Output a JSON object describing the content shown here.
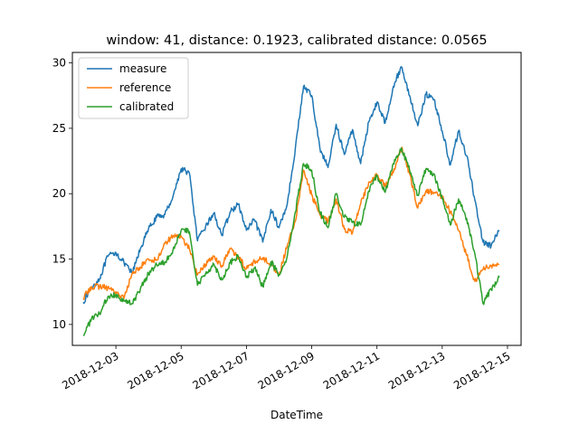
{
  "chart_data": {
    "type": "line",
    "title": "window: 41, distance: 0.1923, calibrated distance: 0.0565",
    "xlabel": "DateTime",
    "ylabel": "",
    "grid": false,
    "legend_position": "upper-left",
    "xlim": [
      "2018-12-01T16:00",
      "2018-12-15T10:00"
    ],
    "ylim": [
      8.4,
      30.8
    ],
    "x_ticks": [
      "2018-12-03",
      "2018-12-05",
      "2018-12-07",
      "2018-12-09",
      "2018-12-11",
      "2018-12-13",
      "2018-12-15"
    ],
    "y_ticks": [
      10,
      15,
      20,
      25,
      30
    ],
    "series": [
      {
        "name": "measure",
        "color": "#1f77b4",
        "points": [
          [
            "2018-12-02T00:00",
            11.7
          ],
          [
            "2018-12-02T06:00",
            12.8
          ],
          [
            "2018-12-02T12:00",
            13.5
          ],
          [
            "2018-12-02T18:00",
            15.2
          ],
          [
            "2018-12-03T00:00",
            15.5
          ],
          [
            "2018-12-03T06:00",
            14.7
          ],
          [
            "2018-12-03T12:00",
            13.9
          ],
          [
            "2018-12-03T18:00",
            15.8
          ],
          [
            "2018-12-04T00:00",
            17.3
          ],
          [
            "2018-12-04T06:00",
            18.2
          ],
          [
            "2018-12-04T12:00",
            18.4
          ],
          [
            "2018-12-04T18:00",
            19.8
          ],
          [
            "2018-12-05T00:00",
            21.9
          ],
          [
            "2018-12-05T06:00",
            21.6
          ],
          [
            "2018-12-05T12:00",
            16.4
          ],
          [
            "2018-12-05T18:00",
            17.5
          ],
          [
            "2018-12-06T00:00",
            18.5
          ],
          [
            "2018-12-06T06:00",
            16.8
          ],
          [
            "2018-12-06T12:00",
            18.6
          ],
          [
            "2018-12-06T18:00",
            19.2
          ],
          [
            "2018-12-07T00:00",
            17.2
          ],
          [
            "2018-12-07T06:00",
            18.0
          ],
          [
            "2018-12-07T12:00",
            16.3
          ],
          [
            "2018-12-07T18:00",
            18.8
          ],
          [
            "2018-12-08T00:00",
            17.4
          ],
          [
            "2018-12-08T06:00",
            19.2
          ],
          [
            "2018-12-08T12:00",
            23.5
          ],
          [
            "2018-12-08T18:00",
            28.2
          ],
          [
            "2018-12-09T00:00",
            27.5
          ],
          [
            "2018-12-09T06:00",
            23.5
          ],
          [
            "2018-12-09T12:00",
            22.0
          ],
          [
            "2018-12-09T18:00",
            25.3
          ],
          [
            "2018-12-10T00:00",
            23.0
          ],
          [
            "2018-12-10T06:00",
            24.9
          ],
          [
            "2018-12-10T12:00",
            22.3
          ],
          [
            "2018-12-10T18:00",
            25.5
          ],
          [
            "2018-12-11T00:00",
            27.0
          ],
          [
            "2018-12-11T06:00",
            25.4
          ],
          [
            "2018-12-11T12:00",
            28.2
          ],
          [
            "2018-12-11T18:00",
            29.7
          ],
          [
            "2018-12-12T00:00",
            27.5
          ],
          [
            "2018-12-12T06:00",
            25.2
          ],
          [
            "2018-12-12T12:00",
            27.6
          ],
          [
            "2018-12-12T18:00",
            27.2
          ],
          [
            "2018-12-13T00:00",
            24.8
          ],
          [
            "2018-12-13T06:00",
            22.2
          ],
          [
            "2018-12-13T12:00",
            24.8
          ],
          [
            "2018-12-13T18:00",
            22.9
          ],
          [
            "2018-12-14T00:00",
            19.5
          ],
          [
            "2018-12-14T06:00",
            16.3
          ],
          [
            "2018-12-14T12:00",
            16.0
          ],
          [
            "2018-12-14T18:00",
            17.2
          ]
        ]
      },
      {
        "name": "reference",
        "color": "#ff7f0e",
        "points": [
          [
            "2018-12-02T00:00",
            12.0
          ],
          [
            "2018-12-02T06:00",
            12.9
          ],
          [
            "2018-12-02T12:00",
            12.9
          ],
          [
            "2018-12-02T18:00",
            12.8
          ],
          [
            "2018-12-03T00:00",
            12.5
          ],
          [
            "2018-12-03T06:00",
            12.0
          ],
          [
            "2018-12-03T12:00",
            13.9
          ],
          [
            "2018-12-03T18:00",
            14.4
          ],
          [
            "2018-12-04T00:00",
            15.0
          ],
          [
            "2018-12-04T06:00",
            14.9
          ],
          [
            "2018-12-04T12:00",
            16.2
          ],
          [
            "2018-12-04T18:00",
            16.8
          ],
          [
            "2018-12-05T00:00",
            16.7
          ],
          [
            "2018-12-05T06:00",
            15.8
          ],
          [
            "2018-12-05T12:00",
            13.8
          ],
          [
            "2018-12-05T18:00",
            14.6
          ],
          [
            "2018-12-06T00:00",
            15.2
          ],
          [
            "2018-12-06T06:00",
            14.5
          ],
          [
            "2018-12-06T12:00",
            15.8
          ],
          [
            "2018-12-06T18:00",
            15.1
          ],
          [
            "2018-12-07T00:00",
            14.3
          ],
          [
            "2018-12-07T06:00",
            14.8
          ],
          [
            "2018-12-07T12:00",
            15.1
          ],
          [
            "2018-12-07T18:00",
            14.6
          ],
          [
            "2018-12-08T00:00",
            13.8
          ],
          [
            "2018-12-08T06:00",
            16.0
          ],
          [
            "2018-12-08T12:00",
            17.9
          ],
          [
            "2018-12-08T18:00",
            21.8
          ],
          [
            "2018-12-09T00:00",
            19.9
          ],
          [
            "2018-12-09T06:00",
            18.4
          ],
          [
            "2018-12-09T12:00",
            17.9
          ],
          [
            "2018-12-09T18:00",
            19.6
          ],
          [
            "2018-12-10T00:00",
            17.3
          ],
          [
            "2018-12-10T06:00",
            17.0
          ],
          [
            "2018-12-10T12:00",
            19.2
          ],
          [
            "2018-12-10T18:00",
            20.9
          ],
          [
            "2018-12-11T00:00",
            21.4
          ],
          [
            "2018-12-11T06:00",
            20.6
          ],
          [
            "2018-12-11T12:00",
            21.6
          ],
          [
            "2018-12-11T18:00",
            23.5
          ],
          [
            "2018-12-12T00:00",
            21.5
          ],
          [
            "2018-12-12T06:00",
            18.9
          ],
          [
            "2018-12-12T12:00",
            20.2
          ],
          [
            "2018-12-12T18:00",
            20.1
          ],
          [
            "2018-12-13T00:00",
            19.7
          ],
          [
            "2018-12-13T06:00",
            18.6
          ],
          [
            "2018-12-13T12:00",
            17.2
          ],
          [
            "2018-12-13T18:00",
            15.3
          ],
          [
            "2018-12-14T00:00",
            13.3
          ],
          [
            "2018-12-14T06:00",
            14.2
          ],
          [
            "2018-12-14T12:00",
            14.5
          ],
          [
            "2018-12-14T18:00",
            14.6
          ]
        ]
      },
      {
        "name": "calibrated",
        "color": "#2ca02c",
        "points": [
          [
            "2018-12-02T00:00",
            9.2
          ],
          [
            "2018-12-02T06:00",
            10.4
          ],
          [
            "2018-12-02T12:00",
            10.8
          ],
          [
            "2018-12-02T18:00",
            12.1
          ],
          [
            "2018-12-03T00:00",
            12.3
          ],
          [
            "2018-12-03T06:00",
            11.8
          ],
          [
            "2018-12-03T12:00",
            11.6
          ],
          [
            "2018-12-03T18:00",
            12.7
          ],
          [
            "2018-12-04T00:00",
            13.9
          ],
          [
            "2018-12-04T06:00",
            14.6
          ],
          [
            "2018-12-04T12:00",
            14.8
          ],
          [
            "2018-12-04T18:00",
            15.7
          ],
          [
            "2018-12-05T00:00",
            17.2
          ],
          [
            "2018-12-05T06:00",
            17.1
          ],
          [
            "2018-12-05T12:00",
            13.0
          ],
          [
            "2018-12-05T18:00",
            13.9
          ],
          [
            "2018-12-06T00:00",
            14.6
          ],
          [
            "2018-12-06T06:00",
            13.4
          ],
          [
            "2018-12-06T12:00",
            14.7
          ],
          [
            "2018-12-06T18:00",
            15.2
          ],
          [
            "2018-12-07T00:00",
            13.6
          ],
          [
            "2018-12-07T06:00",
            14.3
          ],
          [
            "2018-12-07T12:00",
            12.9
          ],
          [
            "2018-12-07T18:00",
            14.8
          ],
          [
            "2018-12-08T00:00",
            13.8
          ],
          [
            "2018-12-08T06:00",
            15.2
          ],
          [
            "2018-12-08T12:00",
            18.6
          ],
          [
            "2018-12-08T18:00",
            22.3
          ],
          [
            "2018-12-09T00:00",
            21.8
          ],
          [
            "2018-12-09T06:00",
            18.6
          ],
          [
            "2018-12-09T12:00",
            17.4
          ],
          [
            "2018-12-09T18:00",
            20.0
          ],
          [
            "2018-12-10T00:00",
            18.2
          ],
          [
            "2018-12-10T06:00",
            17.8
          ],
          [
            "2018-12-10T12:00",
            17.6
          ],
          [
            "2018-12-10T18:00",
            20.2
          ],
          [
            "2018-12-11T00:00",
            21.4
          ],
          [
            "2018-12-11T06:00",
            20.1
          ],
          [
            "2018-12-11T12:00",
            22.3
          ],
          [
            "2018-12-11T18:00",
            23.5
          ],
          [
            "2018-12-12T00:00",
            21.8
          ],
          [
            "2018-12-12T06:00",
            19.9
          ],
          [
            "2018-12-12T12:00",
            21.9
          ],
          [
            "2018-12-12T18:00",
            21.5
          ],
          [
            "2018-12-13T00:00",
            19.6
          ],
          [
            "2018-12-13T06:00",
            17.6
          ],
          [
            "2018-12-13T12:00",
            19.6
          ],
          [
            "2018-12-13T18:00",
            18.1
          ],
          [
            "2018-12-14T00:00",
            15.4
          ],
          [
            "2018-12-14T06:00",
            11.6
          ],
          [
            "2018-12-14T12:00",
            12.7
          ],
          [
            "2018-12-14T18:00",
            13.6
          ]
        ]
      }
    ]
  }
}
